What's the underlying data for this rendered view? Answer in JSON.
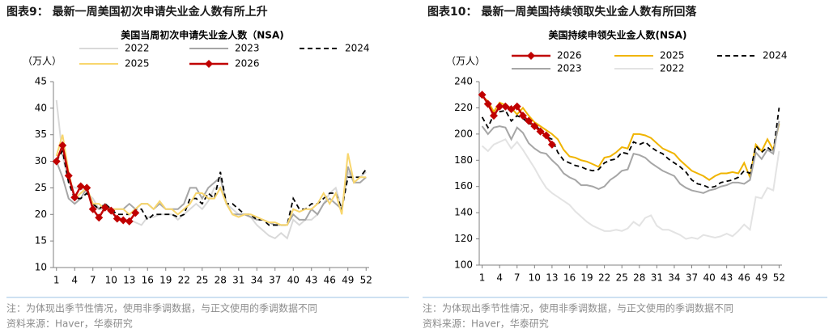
{
  "chart_data": [
    {
      "type": "line",
      "caption": "图表9：  最新一周美国初次申请失业金人数有所上升",
      "title": "美国当周初次申请失业金人数（NSA)",
      "y_unit": "（万人）",
      "note": "注：为体现出季节性情况，使用非季调数据，与正文使用的季调数据不同",
      "source": "资料来源：Haver，华泰研究",
      "x": [
        1,
        2,
        3,
        4,
        5,
        6,
        7,
        8,
        9,
        10,
        11,
        12,
        13,
        14,
        15,
        16,
        17,
        18,
        19,
        20,
        21,
        22,
        23,
        24,
        25,
        26,
        27,
        28,
        29,
        30,
        31,
        32,
        33,
        34,
        35,
        36,
        37,
        38,
        39,
        40,
        41,
        42,
        43,
        44,
        45,
        46,
        47,
        48,
        49,
        50,
        51,
        52
      ],
      "xlim": [
        0.5,
        52.5
      ],
      "xticks": [
        1,
        4,
        7,
        10,
        13,
        16,
        19,
        22,
        25,
        28,
        31,
        34,
        37,
        40,
        43,
        46,
        49,
        52
      ],
      "ylim": [
        10,
        45
      ],
      "yticks": [
        10,
        15,
        20,
        25,
        30,
        35,
        40,
        45
      ],
      "series": [
        {
          "name": "2022",
          "color": "#d9d9d9",
          "values": [
            41.5,
            31,
            26,
            25,
            25,
            24,
            23,
            21,
            21,
            21,
            19,
            19,
            19,
            18.5,
            18,
            19.5,
            19.5,
            20,
            20,
            20,
            19,
            20,
            21,
            22,
            21,
            22.5,
            25,
            25,
            22,
            21,
            20,
            20,
            19.5,
            18,
            17,
            16,
            15.5,
            16.5,
            15.5,
            19,
            18,
            19,
            19,
            20,
            22,
            24,
            25,
            21,
            28,
            26,
            27,
            28
          ]
        },
        {
          "name": "2023",
          "color": "#a6a6a6",
          "values": [
            30,
            27,
            23,
            22,
            23,
            25,
            22,
            21,
            22,
            21,
            21,
            21,
            22,
            21,
            22,
            22,
            21,
            22,
            21,
            21,
            21,
            22,
            25,
            25,
            23,
            25,
            26,
            27,
            22,
            20,
            20,
            20,
            19.5,
            19,
            19,
            18.5,
            18,
            18,
            18,
            20,
            19,
            19,
            21,
            20,
            22,
            23,
            22,
            21,
            29,
            26,
            26,
            27
          ]
        },
        {
          "name": "2024",
          "color": "#000000",
          "dash": true,
          "values": [
            30,
            32,
            26,
            23,
            23,
            24,
            22,
            21,
            22,
            21,
            20,
            20,
            20,
            21,
            21,
            19,
            20,
            20,
            20,
            20,
            19.5,
            20,
            23,
            23,
            22,
            24,
            23,
            28,
            22,
            22,
            21,
            20,
            20,
            19,
            19,
            18,
            18,
            18,
            18,
            23,
            21,
            21,
            22,
            22,
            23,
            24,
            24,
            21,
            27,
            27,
            27,
            28.5
          ]
        },
        {
          "name": "2025",
          "color": "#f8d66d",
          "values": [
            31,
            35,
            28,
            23,
            24,
            25,
            22,
            22,
            21,
            21,
            21,
            21,
            20,
            21,
            22,
            22,
            21,
            22.5,
            21,
            21,
            20,
            21,
            22,
            24,
            24,
            23,
            23,
            25,
            22,
            20,
            19.5,
            20,
            20,
            19.5,
            19,
            18.5,
            18.5,
            18,
            18,
            21,
            20.5,
            21,
            21,
            22,
            24,
            22,
            24,
            20,
            31.5,
            26,
            27,
            27
          ]
        },
        {
          "name": "2026",
          "color": "#c00000",
          "marker": "diamond",
          "values": [
            30,
            33,
            27.3,
            23.2,
            25.3,
            25,
            21,
            19.4,
            21.3,
            20.7,
            19.2,
            18.9,
            18.7,
            20.3,
            null,
            null,
            null,
            null,
            null,
            null,
            null,
            null,
            null,
            null,
            null,
            null,
            null,
            null,
            null,
            null,
            null,
            null,
            null,
            null,
            null,
            null,
            null,
            null,
            null,
            null,
            null,
            null,
            null,
            null,
            null,
            null,
            null,
            null,
            null,
            null,
            null,
            null
          ]
        }
      ]
    },
    {
      "type": "line",
      "caption": "图表10：  最新一周美国持续领取失业金人数有所回落",
      "title": "美国持续申领失业金人数(NSA)",
      "y_unit": "（万人）",
      "note": "注：为体现出季节性情况，使用非季调数据，与正文使用的季调数据不同",
      "source": "资料来源：Haver，华泰研究",
      "x": [
        1,
        2,
        3,
        4,
        5,
        6,
        7,
        8,
        9,
        10,
        11,
        12,
        13,
        14,
        15,
        16,
        17,
        18,
        19,
        20,
        21,
        22,
        23,
        24,
        25,
        26,
        27,
        28,
        29,
        30,
        31,
        32,
        33,
        34,
        35,
        36,
        37,
        38,
        39,
        40,
        41,
        42,
        43,
        44,
        45,
        46,
        47,
        48,
        49,
        50,
        51,
        52
      ],
      "xlim": [
        0.5,
        52.5
      ],
      "xticks": [
        1,
        4,
        7,
        10,
        13,
        16,
        19,
        22,
        25,
        28,
        31,
        34,
        37,
        40,
        43,
        46,
        49,
        52
      ],
      "ylim": [
        100,
        240
      ],
      "yticks": [
        100,
        120,
        140,
        160,
        180,
        200,
        220,
        240
      ],
      "series": [
        {
          "name": "2026",
          "color": "#c00000",
          "marker": "diamond",
          "values": [
            230,
            223,
            214,
            221,
            221,
            219,
            221,
            214,
            210,
            206,
            202,
            199,
            192,
            null,
            null,
            null,
            null,
            null,
            null,
            null,
            null,
            null,
            null,
            null,
            null,
            null,
            null,
            null,
            null,
            null,
            null,
            null,
            null,
            null,
            null,
            null,
            null,
            null,
            null,
            null,
            null,
            null,
            null,
            null,
            null,
            null,
            null,
            null,
            null,
            null,
            null,
            null
          ]
        },
        {
          "name": "2025",
          "color": "#f0b400",
          "values": [
            229,
            225,
            217,
            224,
            222,
            220,
            215,
            220,
            214,
            209,
            206,
            203,
            200,
            196,
            188,
            183,
            182,
            180,
            179,
            177,
            175,
            182,
            183,
            186,
            190,
            189,
            200,
            200,
            199,
            197,
            193,
            189,
            187,
            185,
            180,
            176,
            172,
            170,
            168,
            165,
            168,
            170,
            170,
            171,
            170,
            178,
            167,
            192,
            187,
            196,
            188,
            208
          ]
        },
        {
          "name": "2024",
          "color": "#000000",
          "dash": true,
          "values": [
            213,
            205,
            215,
            217,
            218,
            210,
            214,
            212,
            208,
            207,
            203,
            198,
            196,
            186,
            180,
            178,
            176,
            175,
            173,
            172,
            173,
            178,
            180,
            181,
            186,
            185,
            194,
            192,
            194,
            190,
            187,
            185,
            181,
            178,
            175,
            171,
            165,
            162,
            161,
            159,
            160,
            163,
            164,
            165,
            167,
            172,
            170,
            191,
            186,
            190,
            186,
            220
          ]
        },
        {
          "name": "2023",
          "color": "#a6a6a6",
          "values": [
            206,
            200,
            205,
            206,
            205,
            196,
            205,
            201,
            193,
            189,
            186,
            185,
            180,
            176,
            170,
            167,
            165,
            161,
            161,
            160,
            158,
            160,
            165,
            168,
            172,
            173,
            185,
            184,
            182,
            178,
            175,
            172,
            170,
            168,
            162,
            159,
            157,
            156,
            155,
            157,
            158,
            160,
            161,
            163,
            163,
            162,
            165,
            186,
            181,
            188,
            185,
            210
          ]
        },
        {
          "name": "2022",
          "color": "#e3e3e3",
          "values": [
            191,
            187,
            192,
            194,
            196,
            189,
            194,
            188,
            181,
            174,
            166,
            159,
            155,
            152,
            149,
            146,
            141,
            137,
            133,
            130,
            128,
            126,
            126,
            127,
            126,
            128,
            133,
            130,
            136,
            138,
            130,
            127,
            127,
            125,
            123,
            120,
            121,
            120,
            123,
            122,
            121,
            122,
            124,
            122,
            126,
            131,
            127,
            152,
            151,
            159,
            157,
            187
          ]
        }
      ]
    }
  ]
}
